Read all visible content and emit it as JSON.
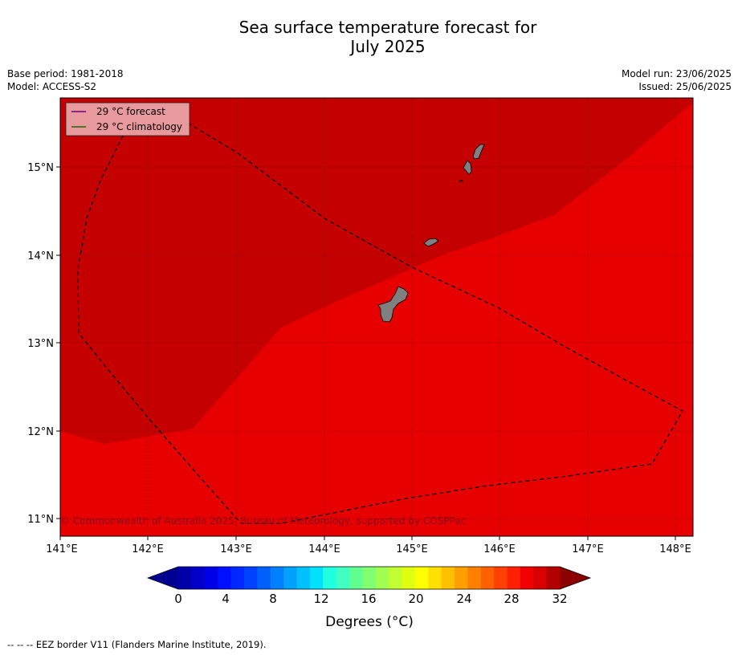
{
  "title_line1": "Sea surface temperature forecast for",
  "title_line2": "July 2025",
  "meta_left": {
    "base_period": "Base period: 1981-2018",
    "model": "Model: ACCESS-S2"
  },
  "meta_right": {
    "model_run": "Model run: 23/06/2025",
    "issued": "Issued: 25/06/2025"
  },
  "legend": {
    "forecast": "29 °C  forecast",
    "climatology": "29 °C  climatology"
  },
  "credit": "© Commonwealth of Australia 2025, Bureau of Meteorology, supported by COSPPac",
  "lat_labels": [
    "15°N",
    "14°N",
    "13°N",
    "12°N",
    "11°N"
  ],
  "lon_labels": [
    "141°E",
    "142°E",
    "143°E",
    "144°E",
    "145°E",
    "146°E",
    "147°E",
    "148°E"
  ],
  "colorbar": {
    "ticks": [
      "0",
      "4",
      "8",
      "12",
      "16",
      "20",
      "24",
      "28",
      "32"
    ],
    "label": "Degrees (°C)",
    "colors": [
      "#0000a8",
      "#0000c8",
      "#0000e8",
      "#0010ff",
      "#0028ff",
      "#0040ff",
      "#0060ff",
      "#0080ff",
      "#00a0ff",
      "#00c0ff",
      "#00e0ff",
      "#20ffe0",
      "#40ffc0",
      "#60ff90",
      "#80ff70",
      "#a0ff50",
      "#c0ff30",
      "#e0ff10",
      "#ffff00",
      "#ffe000",
      "#ffc000",
      "#ffa000",
      "#ff8000",
      "#ff6000",
      "#ff4000",
      "#ff2000",
      "#f00000",
      "#d80000",
      "#b00000"
    ],
    "under_color": "#000090",
    "over_color": "#8b0000"
  },
  "map_colors": {
    "dark_zone": "#c40000",
    "light_zone": "#e60000",
    "land": "#808080"
  },
  "footer": "--  --  -- EEZ border V11 (Flanders Marine Institute, 2019)."
}
